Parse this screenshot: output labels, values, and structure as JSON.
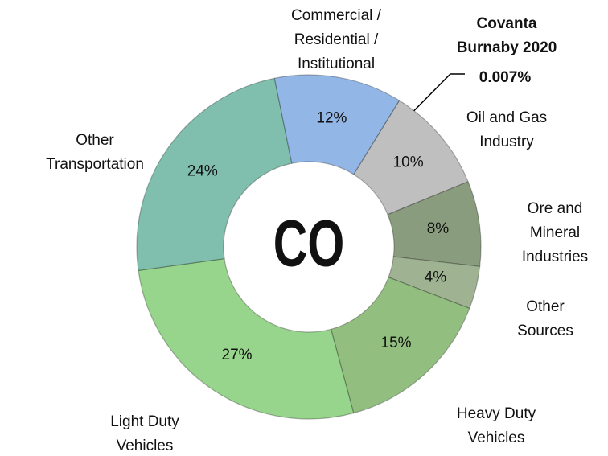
{
  "chart_data": {
    "type": "donut",
    "center_label": "CO",
    "categories": [
      "Covanta\nBurnaby 2020",
      "Oil and Gas\nIndustry",
      "Ore and\nMineral\nIndustries",
      "Other\nSources",
      "Heavy Duty\nVehicles",
      "Light Duty\nVehicles",
      "Other\nTransportation",
      "Commercial /\nResidential /\nInstitutional"
    ],
    "values": [
      0.007,
      10,
      8,
      4,
      15,
      27,
      24,
      12
    ],
    "value_labels": [
      "0.007%",
      "10%",
      "8%",
      "4%",
      "15%",
      "27%",
      "24%",
      "12%"
    ],
    "colors": [
      "#404040",
      "#bfbfbf",
      "#8a9c7e",
      "#9fb393",
      "#92bf80",
      "#97d48c",
      "#80bfad",
      "#92b7e6"
    ]
  }
}
